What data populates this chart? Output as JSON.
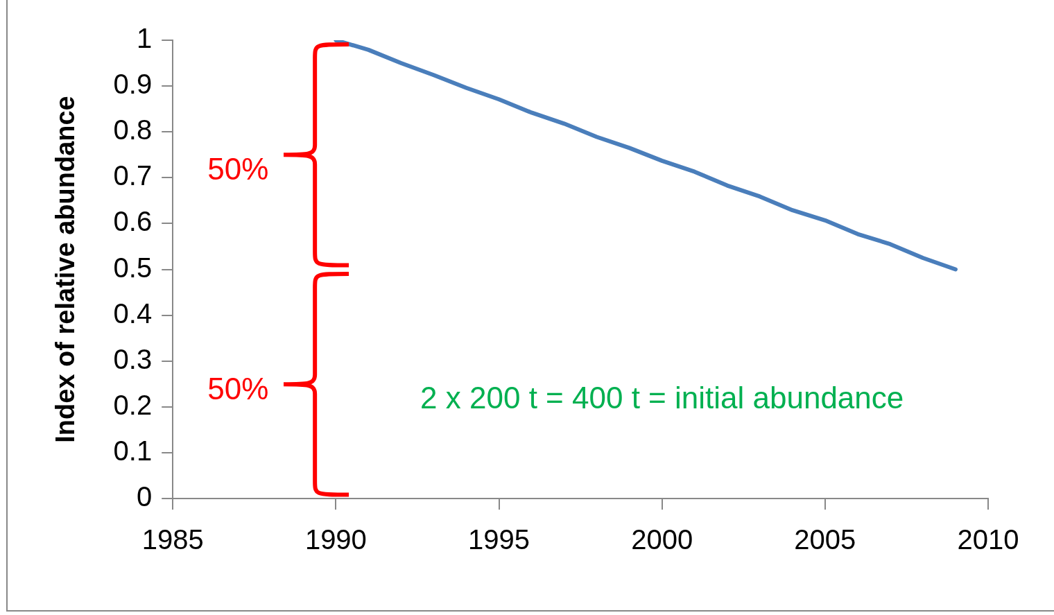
{
  "chart_data": {
    "type": "line",
    "ylabel": "Index of relative abundance",
    "x": [
      1990,
      1991,
      1992,
      1993,
      1994,
      1995,
      1996,
      1997,
      1998,
      1999,
      2000,
      2001,
      2002,
      2003,
      2004,
      2005,
      2006,
      2007,
      2008,
      2009
    ],
    "series": [
      {
        "color": "#4a7ebb",
        "values": [
          1,
          0.979,
          0.95,
          0.924,
          0.896,
          0.871,
          0.842,
          0.818,
          0.789,
          0.765,
          0.737,
          0.713,
          0.683,
          0.659,
          0.629,
          0.607,
          0.577,
          0.555,
          0.525,
          0.5
        ]
      }
    ],
    "xlim": [
      1985,
      2010
    ],
    "xticks": [
      1985,
      1990,
      1995,
      2000,
      2005,
      2010
    ],
    "ylim": [
      0,
      1
    ],
    "yticks": [
      0,
      0.1,
      0.2,
      0.3,
      0.4,
      0.5,
      0.6,
      0.7,
      0.8,
      0.9,
      1
    ],
    "grid": false,
    "legend": false,
    "marker": "none",
    "line_style": "solid",
    "annotations": [
      "50%",
      "50%",
      "2 x 200 t = 400 t = initial abundance"
    ]
  }
}
